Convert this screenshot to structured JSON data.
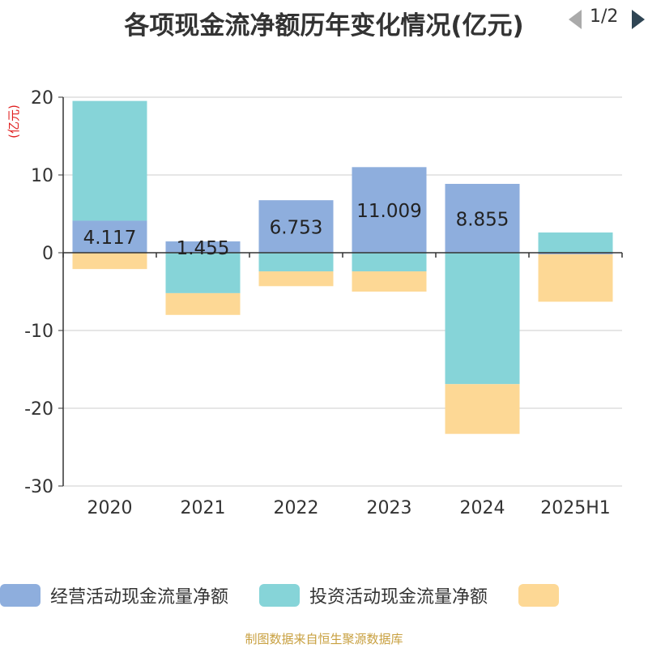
{
  "title": "各项现金流净额历年变化情况(亿元)",
  "y_unit": "(亿元)",
  "source": "制图数据来自恒生聚源数据库",
  "legend": {
    "page_indicator": "1/2",
    "prev_icon": "triangle-left-icon",
    "next_icon": "triangle-right-icon"
  },
  "chart_data": {
    "type": "bar",
    "stacked": true,
    "categories": [
      "2020",
      "2021",
      "2022",
      "2023",
      "2024",
      "2025H1"
    ],
    "ylim": [
      -30,
      20
    ],
    "yticks": [
      20,
      10,
      0,
      -10,
      -20,
      -30
    ],
    "grid": true,
    "legend_position": "bottom",
    "series": [
      {
        "name": "经营活动现金流量净额",
        "color": "#8eaedd",
        "values": [
          4.117,
          1.455,
          6.753,
          11.009,
          8.855,
          -0.2
        ],
        "labels": [
          "4.117",
          "1.455",
          "6.753",
          "11.009",
          "8.855",
          ""
        ]
      },
      {
        "name": "投资活动现金流量净额",
        "color": "#86d4d8",
        "values": [
          15.4,
          -5.2,
          -2.4,
          -2.4,
          -16.9,
          2.6
        ]
      },
      {
        "name": "",
        "color": "#fdd895",
        "values": [
          -2.1,
          -2.8,
          -1.9,
          -2.6,
          -6.4,
          -6.1
        ]
      }
    ]
  }
}
